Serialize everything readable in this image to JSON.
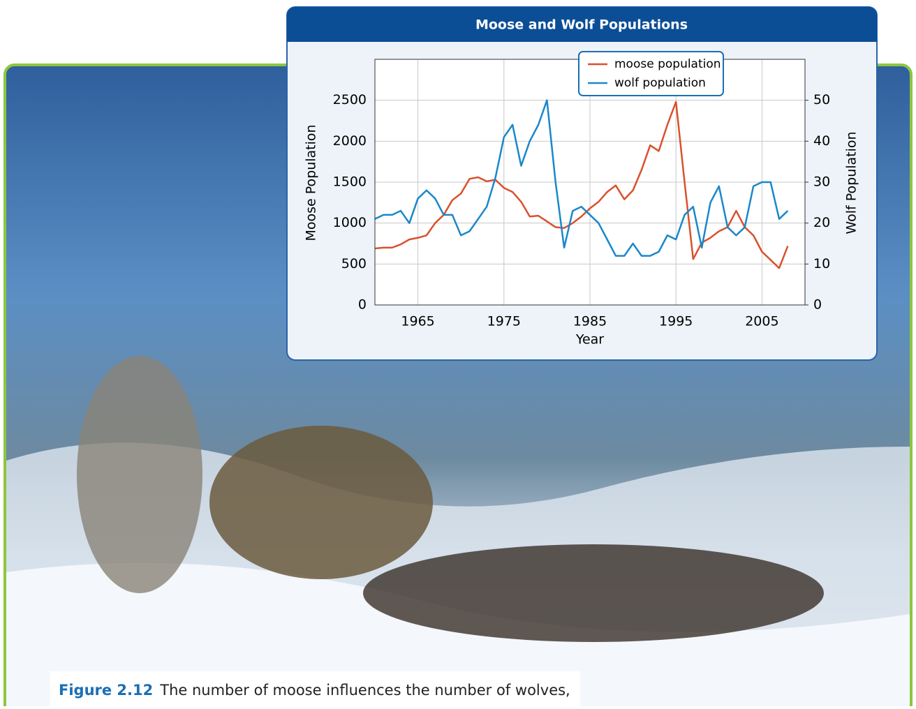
{
  "chart_data": {
    "type": "line",
    "title": "Moose and Wolf Populations",
    "xlabel": "Year",
    "ylabel": "Moose Population",
    "y2label": "Wolf Population",
    "x": [
      1960,
      1961,
      1962,
      1963,
      1964,
      1965,
      1966,
      1967,
      1968,
      1969,
      1970,
      1971,
      1972,
      1973,
      1974,
      1975,
      1976,
      1977,
      1978,
      1979,
      1980,
      1981,
      1982,
      1983,
      1984,
      1985,
      1986,
      1987,
      1988,
      1989,
      1990,
      1991,
      1992,
      1993,
      1994,
      1995,
      1996,
      1997,
      1998,
      1999,
      2000,
      2001,
      2002,
      2003,
      2004,
      2005,
      2006,
      2007,
      2008
    ],
    "series": [
      {
        "name": "moose population",
        "color": "#d9512c",
        "axis": "y",
        "values": [
          690,
          700,
          700,
          740,
          800,
          820,
          850,
          1000,
          1100,
          1280,
          1360,
          1540,
          1560,
          1510,
          1530,
          1430,
          1380,
          1260,
          1080,
          1090,
          1020,
          950,
          940,
          1000,
          1080,
          1180,
          1260,
          1380,
          1460,
          1290,
          1400,
          1650,
          1950,
          1880,
          2200,
          2480,
          1500,
          560,
          760,
          820,
          900,
          950,
          1150,
          950,
          850,
          650,
          550,
          450,
          720
        ]
      },
      {
        "name": "wolf population",
        "color": "#1b87c9",
        "axis": "y2",
        "values": [
          21,
          22,
          22,
          23,
          20,
          26,
          28,
          26,
          22,
          22,
          17,
          18,
          21,
          24,
          31,
          41,
          44,
          34,
          40,
          44,
          50,
          30,
          14,
          23,
          24,
          22,
          20,
          16,
          12,
          12,
          15,
          12,
          12,
          13,
          17,
          16,
          22,
          24,
          14,
          25,
          29,
          19,
          17,
          19,
          29,
          30,
          30,
          21,
          23
        ]
      }
    ],
    "xlim": [
      1960,
      2010
    ],
    "xticks": [
      1965,
      1975,
      1985,
      1995,
      2005
    ],
    "ylim": [
      0,
      3000
    ],
    "yticks": [
      0,
      500,
      1000,
      1500,
      2000,
      2500
    ],
    "y2lim": [
      0,
      60
    ],
    "y2ticks": [
      0,
      10,
      20,
      30,
      40,
      50
    ],
    "grid": true,
    "legend": "top"
  },
  "caption": {
    "label": "Figure 2.12",
    "text": "The number of moose influences the number of wolves,"
  }
}
